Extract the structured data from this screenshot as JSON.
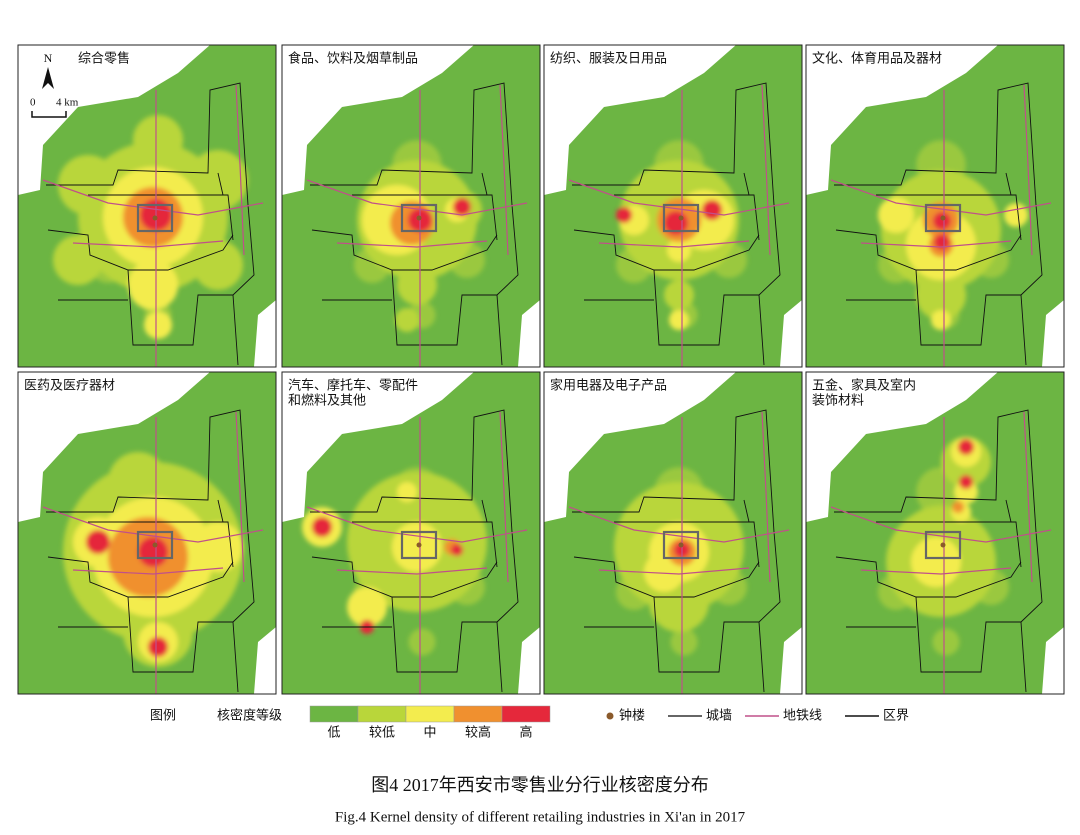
{
  "panels": [
    {
      "title": [
        "综合零售"
      ]
    },
    {
      "title": [
        "食品、饮料及烟草制品"
      ]
    },
    {
      "title": [
        "纺织、服装及日用品"
      ]
    },
    {
      "title": [
        "文化、体育用品及器材"
      ]
    },
    {
      "title": [
        "医药及医疗器材"
      ]
    },
    {
      "title": [
        "汽车、摩托车、零配件",
        "和燃料及其他"
      ]
    },
    {
      "title": [
        "家用电器及电子产品"
      ]
    },
    {
      "title": [
        "五金、家具及室内",
        "装饰材料"
      ]
    }
  ],
  "north": "N",
  "scale": {
    "zero": "0",
    "distance": "4 km"
  },
  "legend": {
    "title": "图例",
    "density_label": "核密度等级",
    "levels": [
      {
        "label": "低",
        "color": "#6cb543"
      },
      {
        "label": "较低",
        "color": "#b9d63a"
      },
      {
        "label": "中",
        "color": "#f3ec4e"
      },
      {
        "label": "较高",
        "color": "#f0902f"
      },
      {
        "label": "高",
        "color": "#e5283b"
      }
    ],
    "symbols": [
      {
        "label": "钟楼",
        "color": "#8a5a2b"
      },
      {
        "label": "城墙",
        "color": "#333333"
      },
      {
        "label": "地铁线",
        "color": "#c0508a"
      },
      {
        "label": "区界",
        "color": "#111111"
      }
    ]
  },
  "caption": {
    "cn": "图4  2017年西安市零售业分行业核密度分布",
    "en": "Fig.4  Kernel density of different retailing industries in Xi'an in 2017"
  }
}
